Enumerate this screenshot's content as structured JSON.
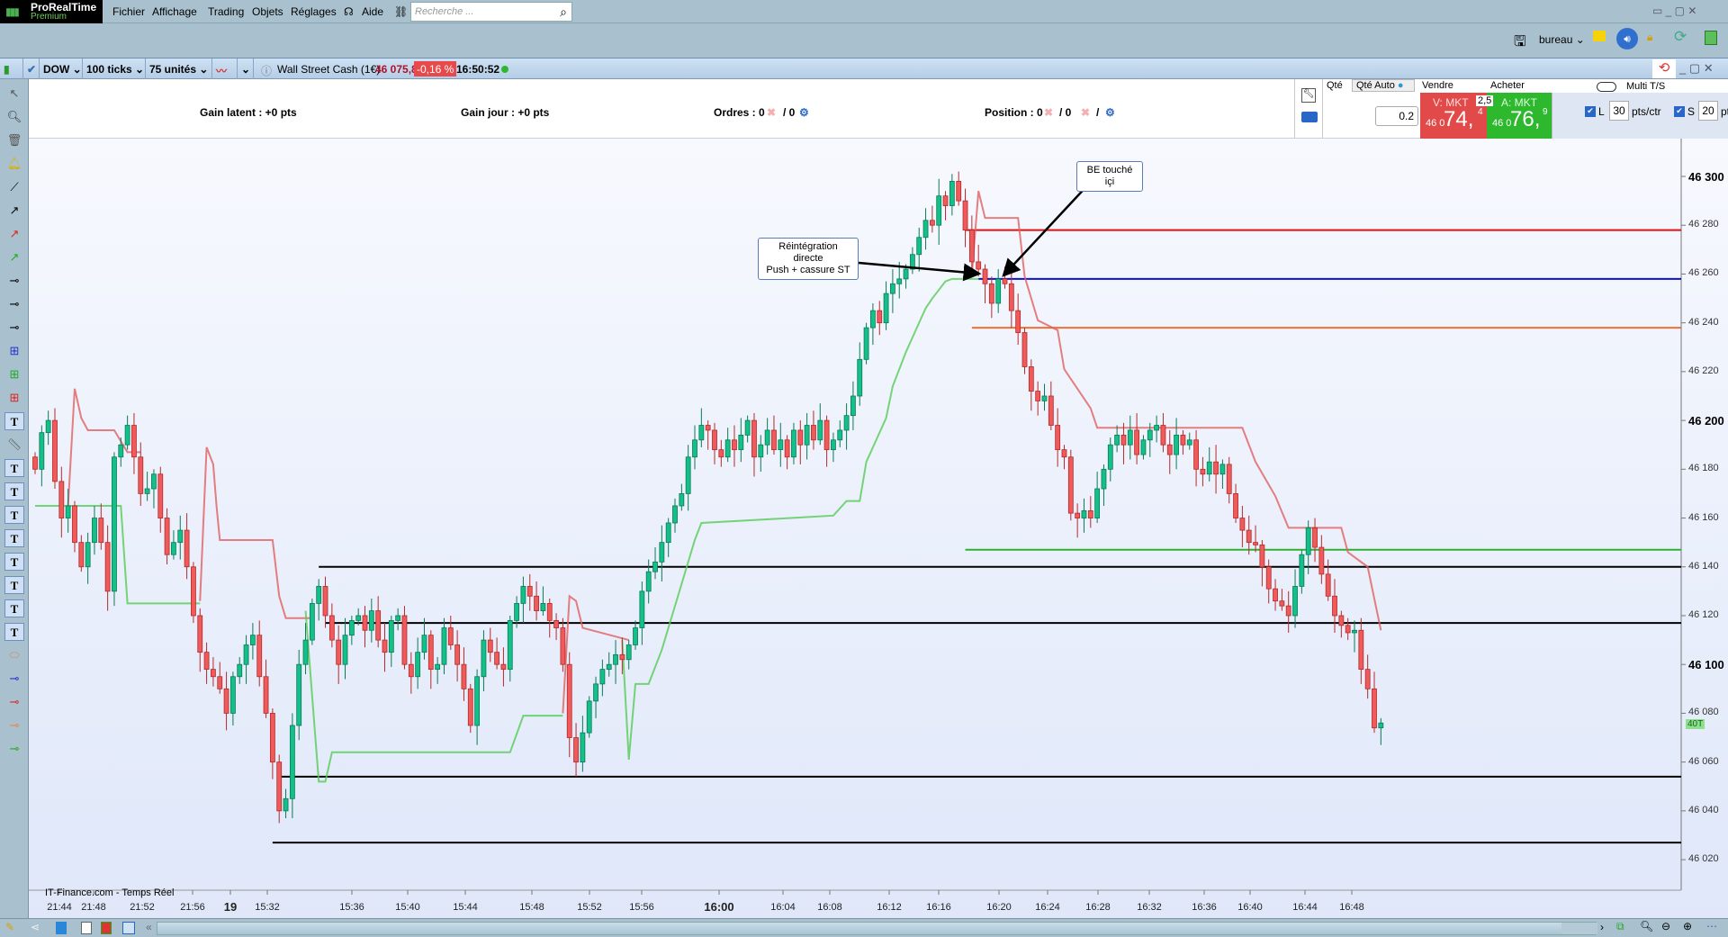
{
  "app": {
    "name": "ProRealTime",
    "edition": "Premium"
  },
  "menu": {
    "items": [
      "Fichier",
      "Affichage",
      "Trading",
      "Objets",
      "Réglages"
    ],
    "help": "Aide",
    "search_placeholder": "Recherche ..."
  },
  "workspace": {
    "label": "bureau"
  },
  "chart_toolbar": {
    "instrument": "DOW",
    "ticks": "100 ticks",
    "units": "75 unités",
    "name": "Wall Street Cash (1€)",
    "last": "46 075,8",
    "change": "-0,16 %",
    "time": "16:50:52",
    "status_color": "#2eb82e"
  },
  "trade_panel": {
    "gain_latent": "Gain latent : +0 pts",
    "gain_jour": "Gain jour : +0 pts",
    "ordres_label": "Ordres : 0",
    "ordres_sep": "/ 0",
    "position_label": "Position : 0",
    "position_sep1": "/ 0",
    "position_sep2": "/",
    "qty_tab": "Qté",
    "qty_auto_tab": "Qté Auto",
    "qty_value": "0.2",
    "sell_label": "Vendre",
    "buy_label": "Acheter",
    "spread": "2,5",
    "sell": {
      "type": "V: MKT",
      "prefix": "46 0",
      "big": "74,",
      "small": "4"
    },
    "buy": {
      "type": "A: MKT",
      "prefix": "46 0",
      "big": "76,",
      "small": "9"
    },
    "multi_ts": "Multi T/S",
    "long": {
      "label": "L",
      "value": "30",
      "unit": "pts/ctr",
      "checked": true
    },
    "short": {
      "label": "S",
      "value": "20",
      "unit": "pts/ctr",
      "checked": true
    }
  },
  "chart": {
    "source": "IT-Finance.com - Temps Réel",
    "price_labels": [
      "46 300",
      "46 280",
      "46 260",
      "46 240",
      "46 220",
      "46 200",
      "46 180",
      "46 160",
      "46 140",
      "46 120",
      "46 100",
      "46 080",
      "46 060",
      "46 040",
      "46 020"
    ],
    "price_values": [
      46300,
      46280,
      46260,
      46240,
      46220,
      46200,
      46180,
      46160,
      46140,
      46120,
      46100,
      46080,
      46060,
      46040,
      46020
    ],
    "time_labels": [
      "21:44",
      "21:48",
      "21:52",
      "21:56",
      "19",
      "15:32",
      "15:36",
      "15:40",
      "15:44",
      "15:48",
      "15:52",
      "15:56",
      "16:00",
      "16:04",
      "16:08",
      "16:12",
      "16:16",
      "16:20",
      "16:24",
      "16:28",
      "16:32",
      "16:36",
      "16:40",
      "16:44",
      "16:48"
    ],
    "last_badge": "40T",
    "up_color": "#13c08a",
    "down_color": "#ef5a5a",
    "closes": [
      46180,
      46195,
      46200,
      46175,
      46160,
      46165,
      46150,
      46140,
      46150,
      46160,
      46150,
      46130,
      46185,
      46190,
      46198,
      46185,
      46170,
      46172,
      46178,
      46160,
      46145,
      46150,
      46155,
      46140,
      46120,
      46105,
      46098,
      46095,
      46090,
      46080,
      46095,
      46100,
      46108,
      46112,
      46095,
      46080,
      46060,
      46040,
      46045,
      46075,
      46100,
      46110,
      46125,
      46132,
      46120,
      46110,
      46100,
      46112,
      46118,
      46120,
      46114,
      46122,
      46110,
      46105,
      46118,
      46120,
      46100,
      46095,
      46105,
      46112,
      46098,
      46100,
      46115,
      46108,
      46100,
      46090,
      46075,
      46095,
      46110,
      46105,
      46100,
      46098,
      46118,
      46125,
      46132,
      46128,
      46122,
      46125,
      46118,
      46115,
      46100,
      46070,
      46060,
      46072,
      46085,
      46092,
      46098,
      46100,
      46104,
      46102,
      46108,
      46115,
      46130,
      46138,
      46142,
      46150,
      46158,
      46165,
      46170,
      46185,
      46192,
      46198,
      46196,
      46188,
      46185,
      46192,
      46188,
      46194,
      46200,
      46185,
      46190,
      46196,
      46188,
      46192,
      46185,
      46196,
      46190,
      46198,
      46192,
      46200,
      46188,
      46192,
      46196,
      46202,
      46210,
      46225,
      46238,
      46245,
      46240,
      46252,
      46256,
      46258,
      46262,
      46268,
      46275,
      46282,
      46280,
      46292,
      46288,
      46298,
      46290,
      46278,
      46265,
      46262,
      46256,
      46248,
      46258,
      46256,
      46245,
      46236,
      46222,
      46212,
      46208,
      46210,
      46198,
      46188,
      46185,
      46162,
      46160,
      46163,
      46160,
      46172,
      46180,
      46190,
      46194,
      46190,
      46196,
      46186,
      46192,
      46196,
      46198,
      46190,
      46186,
      46194,
      46190,
      46192,
      46180,
      46178,
      46183,
      46178,
      46182,
      46170,
      46160,
      46155,
      46150,
      46149,
      46140,
      46131,
      46126,
      46124,
      46120,
      46132,
      46145,
      46156,
      46148,
      46137,
      46128,
      46120,
      46116,
      46113,
      46114,
      46098,
      46090,
      46074,
      46076
    ],
    "upper_line": [
      [
        [
          5,
          46165
        ],
        [
          6,
          46213
        ],
        [
          7,
          46201
        ],
        [
          8,
          46196
        ],
        [
          12,
          46196
        ],
        [
          14,
          46187
        ],
        [
          16,
          46187
        ]
      ],
      [
        [
          25,
          46126
        ],
        [
          26,
          46189
        ],
        [
          27,
          46182
        ],
        [
          27.5,
          46165
        ],
        [
          28,
          46151
        ],
        [
          36,
          46151
        ],
        [
          37,
          46128
        ],
        [
          38,
          46119
        ],
        [
          42,
          46119
        ]
      ],
      [
        [
          80,
          46080
        ],
        [
          81,
          46128
        ],
        [
          82,
          46126
        ],
        [
          83,
          46115
        ],
        [
          90,
          46110
        ]
      ],
      [
        [
          142,
          46260
        ],
        [
          143,
          46294
        ],
        [
          144,
          46283
        ],
        [
          149,
          46283
        ],
        [
          150,
          46259
        ],
        [
          152,
          46241
        ],
        [
          155,
          46237
        ],
        [
          156,
          46221
        ],
        [
          160,
          46205
        ],
        [
          161,
          46197
        ],
        [
          183,
          46197
        ],
        [
          185,
          46183
        ],
        [
          188,
          46169
        ],
        [
          190,
          46156
        ],
        [
          198,
          46156
        ],
        [
          199,
          46146
        ],
        [
          202,
          46140
        ],
        [
          204,
          46114
        ]
      ]
    ],
    "lower_line": [
      [
        [
          0,
          46165
        ],
        [
          13,
          46165
        ],
        [
          14,
          46125
        ],
        [
          25,
          46125
        ]
      ],
      [
        [
          41,
          46122
        ],
        [
          43,
          46052
        ],
        [
          44,
          46052
        ],
        [
          45,
          46064
        ],
        [
          72,
          46064
        ],
        [
          74,
          46079
        ],
        [
          80,
          46079
        ]
      ],
      [
        [
          89,
          46110
        ],
        [
          90,
          46061
        ],
        [
          91,
          46092
        ],
        [
          93,
          46092
        ],
        [
          95,
          46106
        ],
        [
          96,
          46115
        ],
        [
          98,
          46133
        ],
        [
          100,
          46151
        ],
        [
          101,
          46158
        ],
        [
          121,
          46161
        ],
        [
          123,
          46167
        ],
        [
          125,
          46167
        ],
        [
          126,
          46183
        ],
        [
          129,
          46201
        ],
        [
          130,
          46214
        ],
        [
          132,
          46228
        ],
        [
          135,
          46246
        ],
        [
          136,
          46250
        ],
        [
          138,
          46257
        ],
        [
          139,
          46258
        ],
        [
          143,
          46258
        ]
      ]
    ],
    "levels": [
      {
        "price": 46278,
        "from": 141,
        "color": "#e01010"
      },
      {
        "price": 46258,
        "from": 143,
        "color": "#1010d0"
      },
      {
        "price": 46238,
        "from": 142,
        "color": "#f07030"
      },
      {
        "price": 46147,
        "from": 141,
        "color": "#30b030"
      },
      {
        "price": 46140,
        "from": 43,
        "color": "#000000"
      },
      {
        "price": 46117,
        "from": 44,
        "color": "#000000"
      },
      {
        "price": 46054,
        "from": 37,
        "color": "#000000"
      },
      {
        "price": 46027,
        "from": 36,
        "color": "#000000"
      }
    ],
    "notes": [
      {
        "text1": "Réintégration directe",
        "text2": "Push + cassure ST"
      },
      {
        "text1": "BE touché içi"
      }
    ]
  }
}
